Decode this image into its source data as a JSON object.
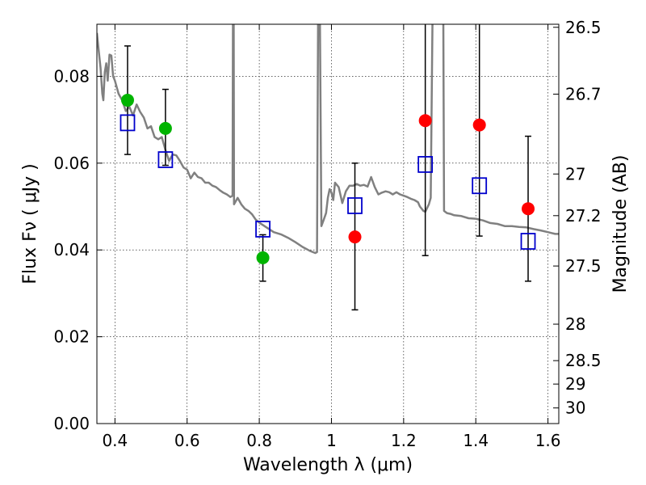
{
  "chart_data": {
    "type": "scatter",
    "xlabel": "Wavelength  λ (μm)",
    "ylabel": "Flux  Fν  ( μJy )",
    "y2label": "Magnitude (AB)",
    "xlim": [
      0.35,
      1.63
    ],
    "ylim": [
      0.0,
      0.092
    ],
    "grid": true,
    "x_ticks": [
      {
        "value": 0.4,
        "label": "0.4"
      },
      {
        "value": 0.6,
        "label": "0.6"
      },
      {
        "value": 0.8,
        "label": "0.8"
      },
      {
        "value": 1.0,
        "label": "1"
      },
      {
        "value": 1.2,
        "label": "1.2"
      },
      {
        "value": 1.4,
        "label": "1.4"
      },
      {
        "value": 1.6,
        "label": "1.6"
      }
    ],
    "y_ticks": [
      {
        "value": 0.0,
        "label": "0.00"
      },
      {
        "value": 0.02,
        "label": "0.02"
      },
      {
        "value": 0.04,
        "label": "0.04"
      },
      {
        "value": 0.06,
        "label": "0.06"
      },
      {
        "value": 0.08,
        "label": "0.08"
      }
    ],
    "y2_ticks": [
      {
        "flux": 0.0913,
        "label": "26.5"
      },
      {
        "flux": 0.0759,
        "label": "26.7"
      },
      {
        "flux": 0.0575,
        "label": "27"
      },
      {
        "flux": 0.0479,
        "label": "27.2"
      },
      {
        "flux": 0.0363,
        "label": "27.5"
      },
      {
        "flux": 0.0229,
        "label": "28"
      },
      {
        "flux": 0.0145,
        "label": "28.5"
      },
      {
        "flux": 0.0091,
        "label": "29"
      },
      {
        "flux": 0.0036,
        "label": "30"
      }
    ],
    "series": [
      {
        "marker": "circle",
        "color": "#00b400",
        "points": [
          {
            "x": 0.435,
            "y": 0.0745,
            "yerr_lo": 0.062,
            "yerr_hi": 0.087
          },
          {
            "x": 0.54,
            "y": 0.068,
            "yerr_lo": 0.0595,
            "yerr_hi": 0.077
          },
          {
            "x": 0.81,
            "y": 0.0382,
            "yerr_lo": 0.0328,
            "yerr_hi": 0.0435
          }
        ]
      },
      {
        "marker": "circle",
        "color": "#ff0000",
        "points": [
          {
            "x": 1.065,
            "y": 0.043,
            "yerr_lo": 0.0262,
            "yerr_hi": 0.06
          },
          {
            "x": 1.26,
            "y": 0.0698,
            "yerr_lo": 0.0387,
            "yerr_hi": 0.093
          },
          {
            "x": 1.41,
            "y": 0.0688,
            "yerr_lo": 0.0432,
            "yerr_hi": 0.093
          },
          {
            "x": 1.545,
            "y": 0.0495,
            "yerr_lo": 0.0328,
            "yerr_hi": 0.0662
          }
        ]
      },
      {
        "marker": "square-open",
        "color": "#0000cc",
        "points": [
          {
            "x": 0.435,
            "y": 0.0693
          },
          {
            "x": 0.54,
            "y": 0.0608
          },
          {
            "x": 0.81,
            "y": 0.0448
          },
          {
            "x": 1.065,
            "y": 0.0502
          },
          {
            "x": 1.26,
            "y": 0.0597
          },
          {
            "x": 1.41,
            "y": 0.0548
          },
          {
            "x": 1.545,
            "y": 0.042
          }
        ]
      }
    ],
    "model_curve": {
      "color": "#808080",
      "points": [
        [
          0.35,
          0.09
        ],
        [
          0.355,
          0.086
        ],
        [
          0.36,
          0.082
        ],
        [
          0.365,
          0.076
        ],
        [
          0.368,
          0.0745
        ],
        [
          0.372,
          0.081
        ],
        [
          0.376,
          0.083
        ],
        [
          0.38,
          0.079
        ],
        [
          0.385,
          0.085
        ],
        [
          0.39,
          0.0848
        ],
        [
          0.395,
          0.08
        ],
        [
          0.4,
          0.079
        ],
        [
          0.41,
          0.076
        ],
        [
          0.42,
          0.0745
        ],
        [
          0.43,
          0.072
        ],
        [
          0.44,
          0.073
        ],
        [
          0.45,
          0.071
        ],
        [
          0.46,
          0.0735
        ],
        [
          0.47,
          0.0718
        ],
        [
          0.48,
          0.0705
        ],
        [
          0.49,
          0.068
        ],
        [
          0.5,
          0.0685
        ],
        [
          0.51,
          0.066
        ],
        [
          0.52,
          0.0655
        ],
        [
          0.53,
          0.066
        ],
        [
          0.54,
          0.063
        ],
        [
          0.55,
          0.0605
        ],
        [
          0.56,
          0.062
        ],
        [
          0.57,
          0.0618
        ],
        [
          0.58,
          0.0605
        ],
        [
          0.59,
          0.059
        ],
        [
          0.6,
          0.0585
        ],
        [
          0.61,
          0.0565
        ],
        [
          0.62,
          0.0578
        ],
        [
          0.63,
          0.0568
        ],
        [
          0.64,
          0.0565
        ],
        [
          0.65,
          0.0555
        ],
        [
          0.66,
          0.0555
        ],
        [
          0.67,
          0.0548
        ],
        [
          0.68,
          0.0545
        ],
        [
          0.69,
          0.0538
        ],
        [
          0.7,
          0.0532
        ],
        [
          0.71,
          0.0528
        ],
        [
          0.72,
          0.0522
        ],
        [
          0.726,
          0.0525
        ],
        [
          0.727,
          0.093
        ],
        [
          0.729,
          0.093
        ],
        [
          0.73,
          0.0505
        ],
        [
          0.74,
          0.052
        ],
        [
          0.75,
          0.0505
        ],
        [
          0.76,
          0.0495
        ],
        [
          0.77,
          0.049
        ],
        [
          0.78,
          0.0482
        ],
        [
          0.79,
          0.047
        ],
        [
          0.8,
          0.0463
        ],
        [
          0.82,
          0.0452
        ],
        [
          0.84,
          0.0441
        ],
        [
          0.86,
          0.0436
        ],
        [
          0.88,
          0.0428
        ],
        [
          0.9,
          0.0418
        ],
        [
          0.92,
          0.0407
        ],
        [
          0.94,
          0.0398
        ],
        [
          0.955,
          0.0393
        ],
        [
          0.96,
          0.0395
        ],
        [
          0.963,
          0.093
        ],
        [
          0.968,
          0.093
        ],
        [
          0.972,
          0.0455
        ],
        [
          0.978,
          0.0468
        ],
        [
          0.985,
          0.0485
        ],
        [
          0.99,
          0.052
        ],
        [
          0.995,
          0.054
        ],
        [
          1.0,
          0.0532
        ],
        [
          1.005,
          0.0515
        ],
        [
          1.01,
          0.0555
        ],
        [
          1.02,
          0.0545
        ],
        [
          1.03,
          0.0508
        ],
        [
          1.04,
          0.0535
        ],
        [
          1.05,
          0.0548
        ],
        [
          1.06,
          0.0548
        ],
        [
          1.07,
          0.0552
        ],
        [
          1.08,
          0.0548
        ],
        [
          1.09,
          0.055
        ],
        [
          1.1,
          0.0546
        ],
        [
          1.11,
          0.0568
        ],
        [
          1.12,
          0.0545
        ],
        [
          1.13,
          0.0528
        ],
        [
          1.14,
          0.0532
        ],
        [
          1.15,
          0.0535
        ],
        [
          1.16,
          0.0533
        ],
        [
          1.17,
          0.0528
        ],
        [
          1.18,
          0.0533
        ],
        [
          1.19,
          0.0528
        ],
        [
          1.2,
          0.0525
        ],
        [
          1.21,
          0.0522
        ],
        [
          1.22,
          0.0518
        ],
        [
          1.23,
          0.0515
        ],
        [
          1.24,
          0.051
        ],
        [
          1.245,
          0.05
        ],
        [
          1.25,
          0.0495
        ],
        [
          1.255,
          0.049
        ],
        [
          1.26,
          0.0488
        ],
        [
          1.27,
          0.0505
        ],
        [
          1.275,
          0.052
        ],
        [
          1.28,
          0.093
        ],
        [
          1.285,
          0.093
        ],
        [
          1.29,
          0.093
        ],
        [
          1.3,
          0.093
        ],
        [
          1.31,
          0.093
        ],
        [
          1.312,
          0.049
        ],
        [
          1.32,
          0.0485
        ],
        [
          1.33,
          0.0483
        ],
        [
          1.34,
          0.048
        ],
        [
          1.36,
          0.0478
        ],
        [
          1.38,
          0.0473
        ],
        [
          1.4,
          0.0472
        ],
        [
          1.42,
          0.0468
        ],
        [
          1.44,
          0.0462
        ],
        [
          1.46,
          0.046
        ],
        [
          1.48,
          0.0455
        ],
        [
          1.5,
          0.0455
        ],
        [
          1.52,
          0.0453
        ],
        [
          1.54,
          0.0452
        ],
        [
          1.56,
          0.0448
        ],
        [
          1.58,
          0.0445
        ],
        [
          1.6,
          0.0441
        ],
        [
          1.61,
          0.0439
        ],
        [
          1.62,
          0.0437
        ],
        [
          1.63,
          0.0437
        ]
      ]
    }
  }
}
